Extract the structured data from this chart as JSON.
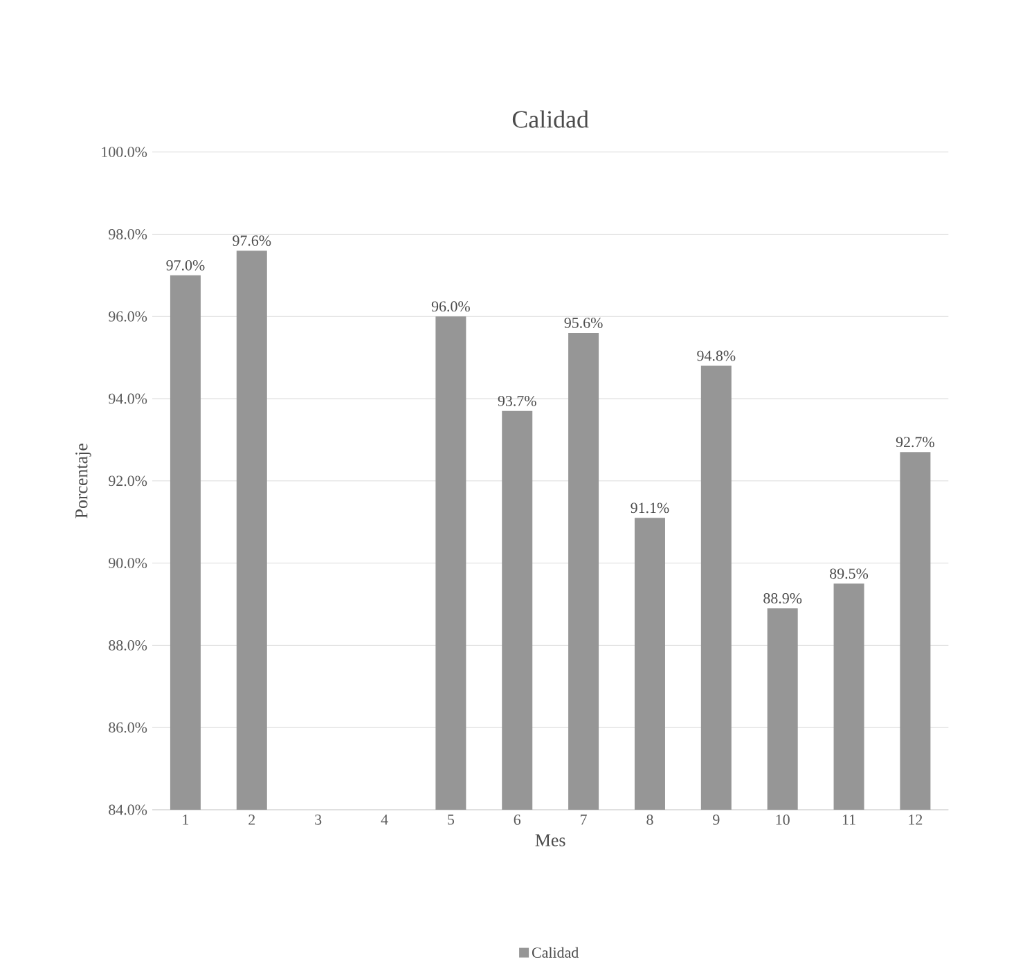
{
  "chart_data": {
    "type": "bar",
    "title": "Calidad",
    "xlabel": "Mes",
    "ylabel": "Porcentaje",
    "categories": [
      "1",
      "2",
      "3",
      "4",
      "5",
      "6",
      "7",
      "8",
      "9",
      "10",
      "11",
      "12"
    ],
    "series": [
      {
        "name": "Calidad",
        "color": "#969696",
        "values": [
          97.0,
          97.6,
          null,
          null,
          96.0,
          93.7,
          95.6,
          91.1,
          94.8,
          88.9,
          89.5,
          92.7
        ],
        "value_labels": [
          "97.0%",
          "97.6%",
          null,
          null,
          "96.0%",
          "93.7%",
          "95.6%",
          "91.1%",
          "94.8%",
          "88.9%",
          "89.5%",
          "92.7%"
        ]
      }
    ],
    "ylim": [
      84,
      100
    ],
    "yticks": [
      {
        "value": 84,
        "label": "84.0%"
      },
      {
        "value": 86,
        "label": "86.0%"
      },
      {
        "value": 88,
        "label": "88.0%"
      },
      {
        "value": 90,
        "label": "90.0%"
      },
      {
        "value": 92,
        "label": "92.0%"
      },
      {
        "value": 94,
        "label": "94.0%"
      },
      {
        "value": 96,
        "label": "96.0%"
      },
      {
        "value": 98,
        "label": "98.0%"
      },
      {
        "value": 100,
        "label": "100.0%"
      }
    ],
    "grid": "y",
    "legend": "bottom"
  }
}
